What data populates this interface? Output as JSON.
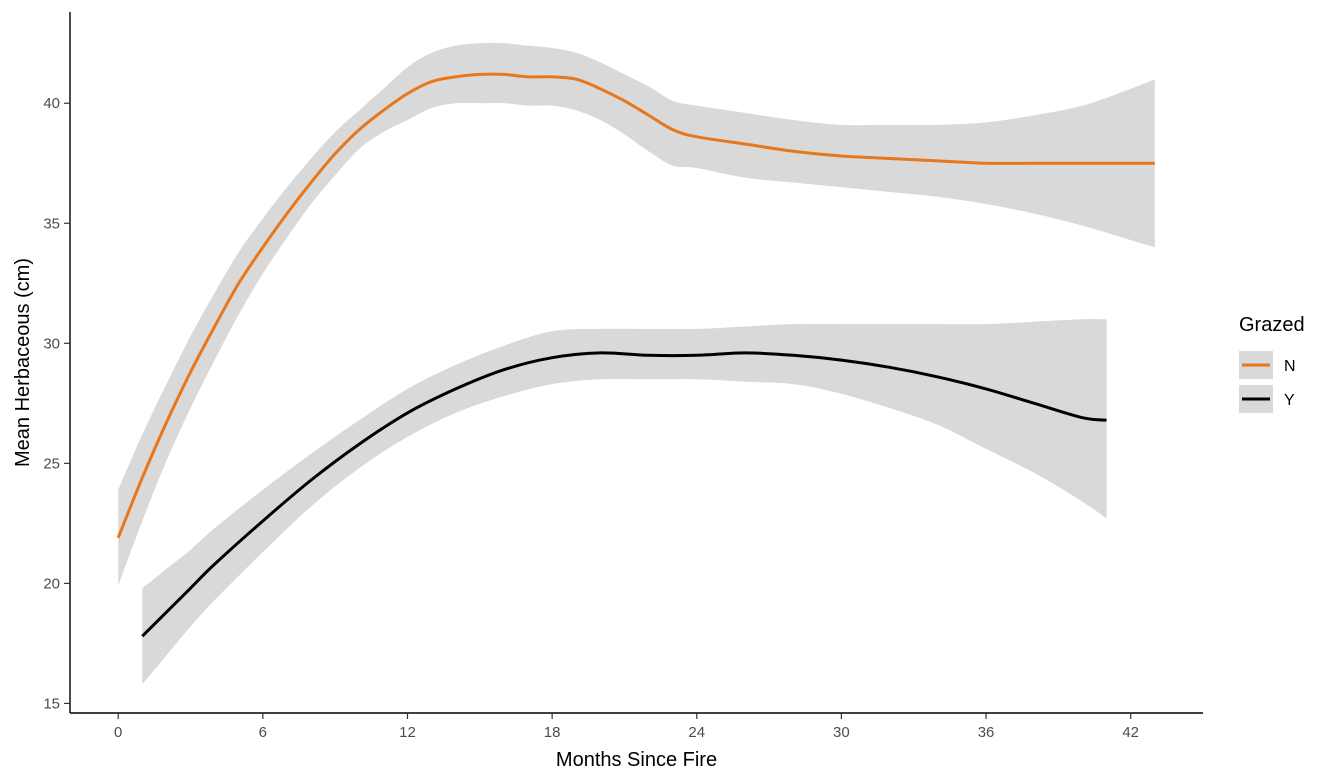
{
  "chart_data": {
    "type": "line",
    "title": "",
    "xlabel": "Months Since Fire",
    "ylabel": "Mean Herbaceous (cm)",
    "xlim": [
      -2,
      45
    ],
    "ylim": [
      14.6,
      43.8
    ],
    "xticks": [
      0,
      6,
      12,
      18,
      24,
      30,
      36,
      42
    ],
    "yticks": [
      15,
      20,
      25,
      30,
      35,
      40
    ],
    "grid": false,
    "legend": {
      "title": "Grazed",
      "position": "right"
    },
    "band_color": "#d9d9d9",
    "series": [
      {
        "name": "N",
        "color": "#e8761a",
        "x": [
          0,
          1,
          2,
          3,
          4,
          5,
          6,
          7,
          8,
          9,
          10,
          11,
          12,
          13,
          14,
          15,
          16,
          17,
          18,
          19,
          20,
          21,
          22,
          23,
          24,
          26,
          28,
          30,
          32,
          34,
          36,
          38,
          40,
          42,
          43
        ],
        "y": [
          21.9,
          24.4,
          26.7,
          28.8,
          30.7,
          32.5,
          34.0,
          35.4,
          36.7,
          37.9,
          38.9,
          39.7,
          40.4,
          40.9,
          41.1,
          41.2,
          41.2,
          41.1,
          41.1,
          41.0,
          40.6,
          40.1,
          39.5,
          38.9,
          38.6,
          38.3,
          38.0,
          37.8,
          37.7,
          37.6,
          37.5,
          37.5,
          37.5,
          37.5,
          37.5
        ],
        "lower": [
          19.9,
          22.6,
          25.1,
          27.3,
          29.3,
          31.2,
          32.9,
          34.4,
          35.8,
          37.0,
          38.1,
          38.8,
          39.3,
          39.8,
          40.0,
          40.0,
          40.0,
          39.9,
          39.9,
          39.7,
          39.3,
          38.7,
          38.0,
          37.4,
          37.3,
          36.9,
          36.7,
          36.5,
          36.3,
          36.1,
          35.8,
          35.4,
          34.9,
          34.3,
          34.0
        ],
        "upper": [
          23.9,
          26.2,
          28.3,
          30.3,
          32.1,
          33.8,
          35.2,
          36.5,
          37.7,
          38.8,
          39.7,
          40.6,
          41.5,
          42.1,
          42.4,
          42.5,
          42.5,
          42.4,
          42.3,
          42.1,
          41.7,
          41.2,
          40.7,
          40.1,
          39.9,
          39.6,
          39.3,
          39.1,
          39.1,
          39.1,
          39.2,
          39.5,
          39.9,
          40.6,
          41.0
        ]
      },
      {
        "name": "Y",
        "color": "#000000",
        "x": [
          1,
          2,
          3,
          4,
          6,
          8,
          10,
          12,
          14,
          16,
          18,
          20,
          22,
          24,
          26,
          28,
          30,
          32,
          34,
          36,
          38,
          40,
          41
        ],
        "y": [
          17.8,
          18.8,
          19.8,
          20.8,
          22.6,
          24.3,
          25.8,
          27.1,
          28.1,
          28.9,
          29.4,
          29.6,
          29.5,
          29.5,
          29.6,
          29.5,
          29.3,
          29.0,
          28.6,
          28.1,
          27.5,
          26.9,
          26.8
        ],
        "lower": [
          15.8,
          17.0,
          18.2,
          19.3,
          21.3,
          23.2,
          24.8,
          26.1,
          27.1,
          27.8,
          28.3,
          28.5,
          28.5,
          28.5,
          28.4,
          28.3,
          27.9,
          27.3,
          26.6,
          25.6,
          24.6,
          23.4,
          22.7
        ],
        "upper": [
          19.8,
          20.6,
          21.4,
          22.3,
          23.9,
          25.4,
          26.8,
          28.1,
          29.1,
          29.9,
          30.5,
          30.6,
          30.6,
          30.6,
          30.7,
          30.8,
          30.8,
          30.8,
          30.8,
          30.8,
          30.9,
          31.0,
          31.0
        ]
      }
    ]
  }
}
